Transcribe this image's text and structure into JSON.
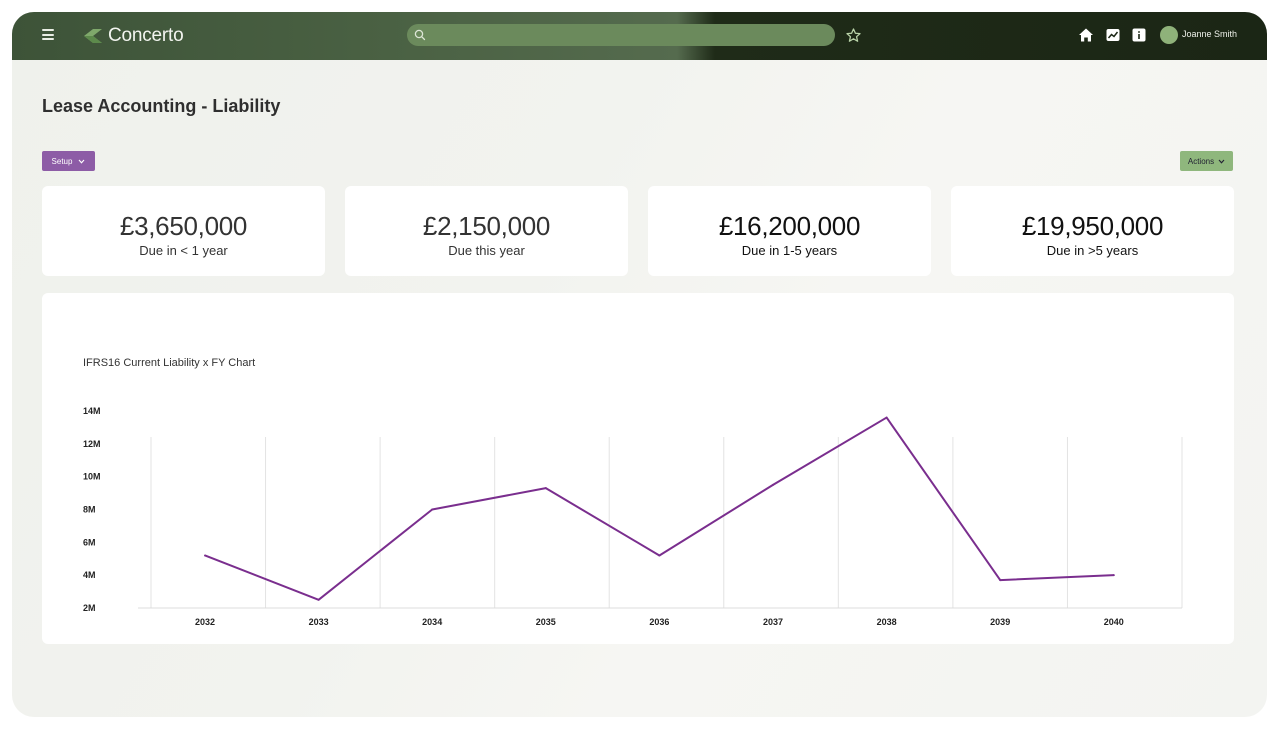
{
  "app": {
    "name": "Concerto"
  },
  "header": {
    "search": {
      "value": "",
      "placeholder": ""
    },
    "user": {
      "name": "Joanne Smith"
    },
    "icons": [
      "menu-icon",
      "logo-icon",
      "search-icon",
      "star-icon",
      "home-icon",
      "chart-icon",
      "info-icon",
      "avatar"
    ]
  },
  "page": {
    "title": "Lease Accounting - Liability",
    "setup_label": "Setup",
    "actions_label": "Actions"
  },
  "cards": [
    {
      "amount": "£3,650,000",
      "label": "Due in < 1 year"
    },
    {
      "amount": "£2,150,000",
      "label": "Due this year"
    },
    {
      "amount": "£16,200,000",
      "label": "Due in 1-5 years"
    },
    {
      "amount": "£19,950,000",
      "label": "Due in >5 years"
    }
  ],
  "colors": {
    "topbar": "#1b2615",
    "accent_purple": "#8d5ca6",
    "accent_green": "#8fb77d",
    "line": "#7a2e8e"
  },
  "chart_data": {
    "type": "line",
    "title": "IFRS16 Current Liability x FY Chart",
    "xlabel": "",
    "ylabel": "",
    "categories": [
      "2032",
      "2033",
      "2034",
      "2035",
      "2036",
      "2037",
      "2038",
      "2039",
      "2040"
    ],
    "series": [
      {
        "values": [
          5.2,
          2.5,
          8.0,
          9.3,
          5.2,
          9.5,
          13.6,
          3.7,
          4.0
        ]
      }
    ],
    "y_ticks": [
      "2M",
      "4M",
      "6M",
      "8M",
      "10M",
      "12M",
      "14M"
    ],
    "ylim": [
      2,
      14
    ],
    "grid": "vertical",
    "legend": "none"
  }
}
